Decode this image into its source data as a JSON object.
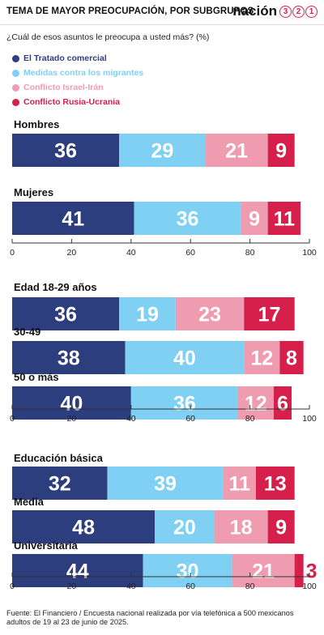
{
  "header": {
    "title": "TEMA DE MAYOR PREOCUPACIÓN, POR SUBGRUPOS",
    "brand_word": "nación",
    "brand_digits": [
      "3",
      "2",
      "1"
    ]
  },
  "question": "¿Cuál de esos asuntos le preocupa a usted más? (%)",
  "colors": {
    "tratado": "#2c3e7d",
    "migrantes": "#7fd0f3",
    "israel": "#ef9bb0",
    "rusia": "#d6204b"
  },
  "chart_data": {
    "type": "bar",
    "orientation": "horizontal",
    "stacked": true,
    "xlim": [
      0,
      100
    ],
    "ticks": [
      0,
      20,
      40,
      60,
      80,
      100
    ],
    "legend": "top-left",
    "series": [
      {
        "name": "El Tratado comercial",
        "color_key": "tratado"
      },
      {
        "name": "Medidas contra los migrantes",
        "color_key": "migrantes"
      },
      {
        "name": "Conflicto Israel-Irán",
        "color_key": "israel"
      },
      {
        "name": "Conflicto Rusia-Ucrania",
        "color_key": "rusia"
      }
    ],
    "groups": [
      {
        "rows": [
          {
            "label": "Hombres",
            "values": [
              36,
              29,
              21,
              9
            ]
          },
          {
            "label": "Mujeres",
            "values": [
              41,
              36,
              9,
              11
            ]
          }
        ]
      },
      {
        "rows": [
          {
            "label": "Edad 18-29 años",
            "values": [
              36,
              19,
              23,
              17
            ]
          },
          {
            "label": "30-49",
            "values": [
              38,
              40,
              12,
              8
            ]
          },
          {
            "label": "50 o más",
            "values": [
              40,
              36,
              12,
              6
            ]
          }
        ]
      },
      {
        "rows": [
          {
            "label": "Educación básica",
            "values": [
              32,
              39,
              11,
              13
            ]
          },
          {
            "label": "Media",
            "values": [
              48,
              20,
              18,
              9
            ]
          },
          {
            "label": "Universitaria",
            "values": [
              44,
              30,
              21,
              3
            ]
          }
        ]
      }
    ]
  },
  "footnote": "Fuente: El Financiero / Encuesta nacional realizada por vía telefónica a 500 mexicanos adultos de 19 al 23 de junio de 2025."
}
